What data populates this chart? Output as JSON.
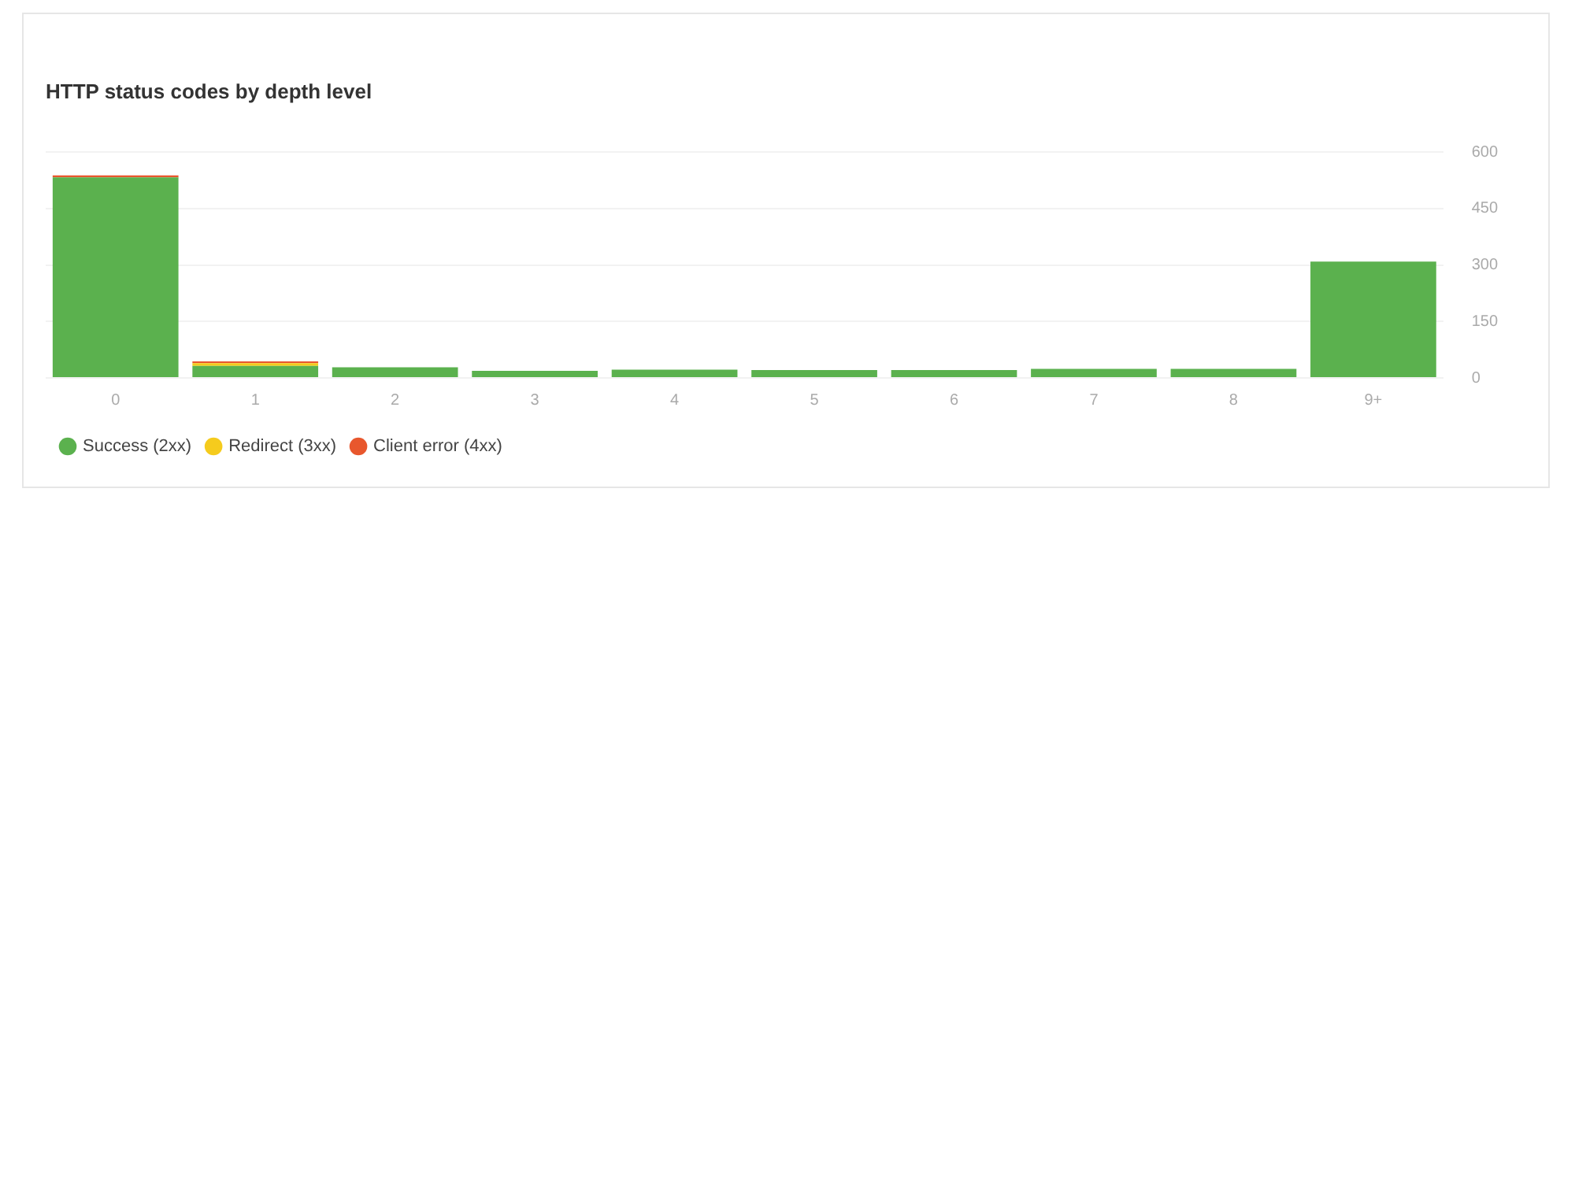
{
  "chart_data": {
    "type": "bar",
    "title": "HTTP status codes by depth level",
    "categories": [
      "0",
      "1",
      "2",
      "3",
      "4",
      "5",
      "6",
      "7",
      "8",
      "9+"
    ],
    "stacked": true,
    "series": [
      {
        "name": "Success (2xx)",
        "color": "#5bb14e",
        "values": [
          533,
          32,
          28,
          19,
          22,
          21,
          21,
          24,
          24,
          309
        ]
      },
      {
        "name": "Redirect (3xx)",
        "color": "#f5cb1d",
        "values": [
          0,
          7,
          0,
          0,
          0,
          0,
          0,
          0,
          0,
          0
        ]
      },
      {
        "name": "Client error (4xx)",
        "color": "#e8572d",
        "values": [
          5,
          5,
          0,
          0,
          0,
          0,
          0,
          0,
          0,
          0
        ]
      }
    ],
    "ylim": [
      0,
      600
    ],
    "yticks": [
      0,
      150,
      300,
      450,
      600
    ],
    "grid": "y",
    "legend": "bottom left"
  }
}
